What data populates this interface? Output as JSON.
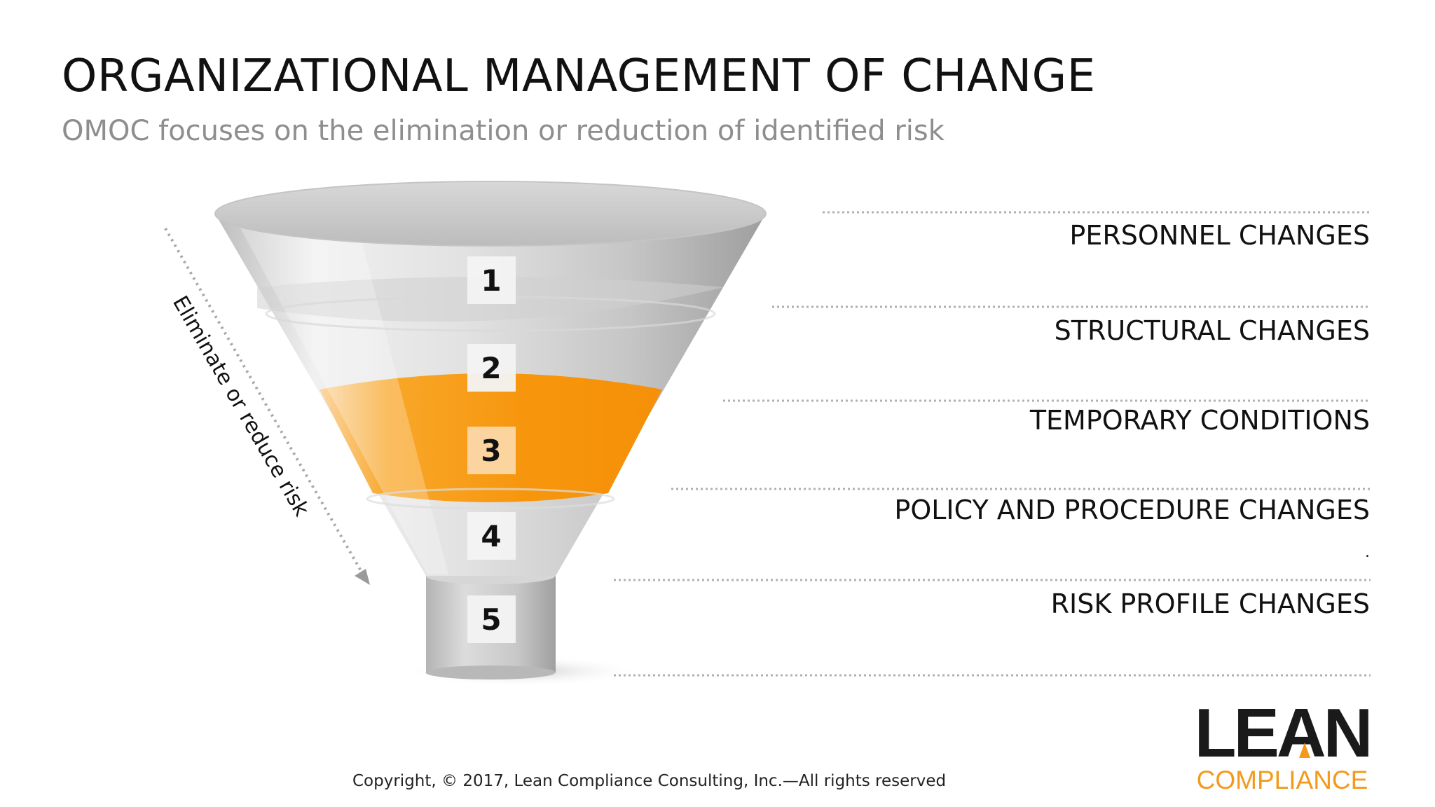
{
  "title": "ORGANIZATIONAL MANAGEMENT OF CHANGE",
  "subtitle": "OMOC focuses on the elimination or reduction of identified risk",
  "arrow_label": "Eliminate or reduce risk",
  "funnel": {
    "steps": [
      "1",
      "2",
      "3",
      "4",
      "5"
    ],
    "highlight_step": "3",
    "colors": {
      "highlight": "#f7960d",
      "funnel_light": "#e9e9e9",
      "funnel_dark": "#a9a9a9",
      "step_box": "#f3f3f3"
    }
  },
  "rows": [
    "PERSONNEL CHANGES",
    "STRUCTURAL CHANGES",
    "TEMPORARY CONDITIONS",
    "POLICY AND PROCEDURE CHANGES",
    "RISK PROFILE CHANGES"
  ],
  "stray_mark": ".",
  "copyright": "Copyright, © 2017, Lean Compliance Consulting, Inc.—All rights reserved",
  "logo": {
    "word1": "LEAN",
    "word2": "COMPLIANCE",
    "text_color": "#1a1a1a",
    "accent_color": "#f39a1c"
  }
}
